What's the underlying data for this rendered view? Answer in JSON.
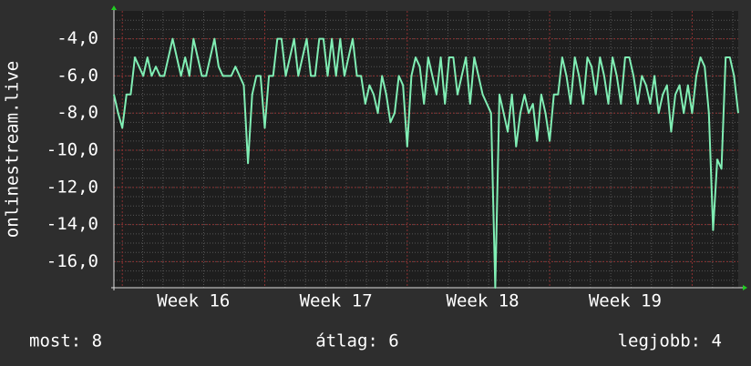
{
  "chart_data": {
    "type": "line",
    "y_label": "onlinestream.live",
    "categories": [
      null,
      null,
      null,
      null,
      null,
      null,
      null,
      null,
      null,
      null,
      null,
      null,
      null,
      null,
      null,
      null,
      null,
      null,
      null,
      "Week 16",
      null,
      null,
      null,
      null,
      null,
      null,
      null,
      null,
      null,
      null,
      null,
      null,
      null,
      null,
      null,
      null,
      null,
      null,
      null,
      null,
      null,
      null,
      null,
      null,
      null,
      null,
      null,
      null,
      null,
      null,
      null,
      null,
      null,
      "Week 17",
      null,
      null,
      null,
      null,
      null,
      null,
      null,
      null,
      null,
      null,
      null,
      null,
      null,
      null,
      null,
      null,
      null,
      null,
      null,
      null,
      null,
      null,
      null,
      null,
      null,
      null,
      null,
      null,
      null,
      null,
      null,
      null,
      null,
      null,
      "Week 18",
      null,
      null,
      null,
      null,
      null,
      null,
      null,
      null,
      null,
      null,
      null,
      null,
      null,
      null,
      null,
      null,
      null,
      null,
      null,
      null,
      null,
      null,
      null,
      null,
      null,
      null,
      null,
      null,
      null,
      null,
      null,
      null,
      null,
      "Week 19",
      null,
      null,
      null,
      null,
      null,
      null,
      null,
      null,
      null,
      null,
      null,
      null,
      null,
      null,
      null,
      null,
      null,
      null,
      null,
      null,
      null,
      null,
      null,
      null,
      null,
      null,
      null
    ],
    "series": [
      {
        "color": "#80eeb4",
        "values": [
          -7,
          -8,
          -8.8,
          -7,
          -7,
          -5,
          -5.5,
          -6,
          -5,
          -6,
          -5.5,
          -6,
          -6,
          -5,
          -4,
          -5,
          -6,
          -5,
          -6,
          -4,
          -5,
          -6,
          -6,
          -5,
          -4,
          -5.5,
          -6,
          -6,
          -6,
          -5.5,
          -6,
          -6.5,
          -10.7,
          -7,
          -6,
          -6,
          -8.8,
          -6,
          -6,
          -4,
          -4,
          -6,
          -5,
          -4,
          -6,
          -5,
          -4,
          -6,
          -6,
          -4,
          -4,
          -6,
          -4,
          -6,
          -4,
          -6,
          -5,
          -4,
          -6,
          -6,
          -7.5,
          -6.5,
          -7,
          -8,
          -6,
          -7,
          -8.5,
          -8,
          -6,
          -6.5,
          -9.8,
          -6,
          -5,
          -5.5,
          -7.5,
          -5,
          -6,
          -7,
          -5,
          -7.5,
          -5,
          -5,
          -7,
          -6,
          -5,
          -7.5,
          -5,
          -6,
          -7,
          -7.5,
          -8,
          -17.4,
          -7,
          -8,
          -9,
          -7,
          -9.8,
          -8,
          -7,
          -8,
          -7.5,
          -9.5,
          -7,
          -8,
          -9.5,
          -7,
          -7,
          -5,
          -6,
          -7.5,
          -5,
          -6,
          -7.5,
          -5,
          -5.5,
          -7,
          -5,
          -6,
          -7.5,
          -5,
          -6,
          -7.5,
          -5,
          -5,
          -6,
          -7.5,
          -6,
          -6.5,
          -7.5,
          -6,
          -8,
          -7,
          -6.5,
          -9,
          -7,
          -6.5,
          -8,
          -6.5,
          -8,
          -6,
          -5,
          -5.5,
          -8,
          -14.3,
          -10.5,
          -11,
          -5,
          -5,
          -6,
          -8
        ]
      }
    ],
    "ylim": [
      -17.4,
      -2.5
    ],
    "yticks": [
      {
        "value": -4,
        "label": "-4,0"
      },
      {
        "value": -6,
        "label": "-6,0"
      },
      {
        "value": -8,
        "label": "-8,0"
      },
      {
        "value": -10,
        "label": "-10,0"
      },
      {
        "value": -12,
        "label": "-12,0"
      },
      {
        "value": -14,
        "label": "-14,0"
      },
      {
        "value": -16,
        "label": "-16,0"
      }
    ],
    "grid": true,
    "stats": [
      "most: 8",
      "átlag: 6",
      "legjobb: 4"
    ]
  }
}
